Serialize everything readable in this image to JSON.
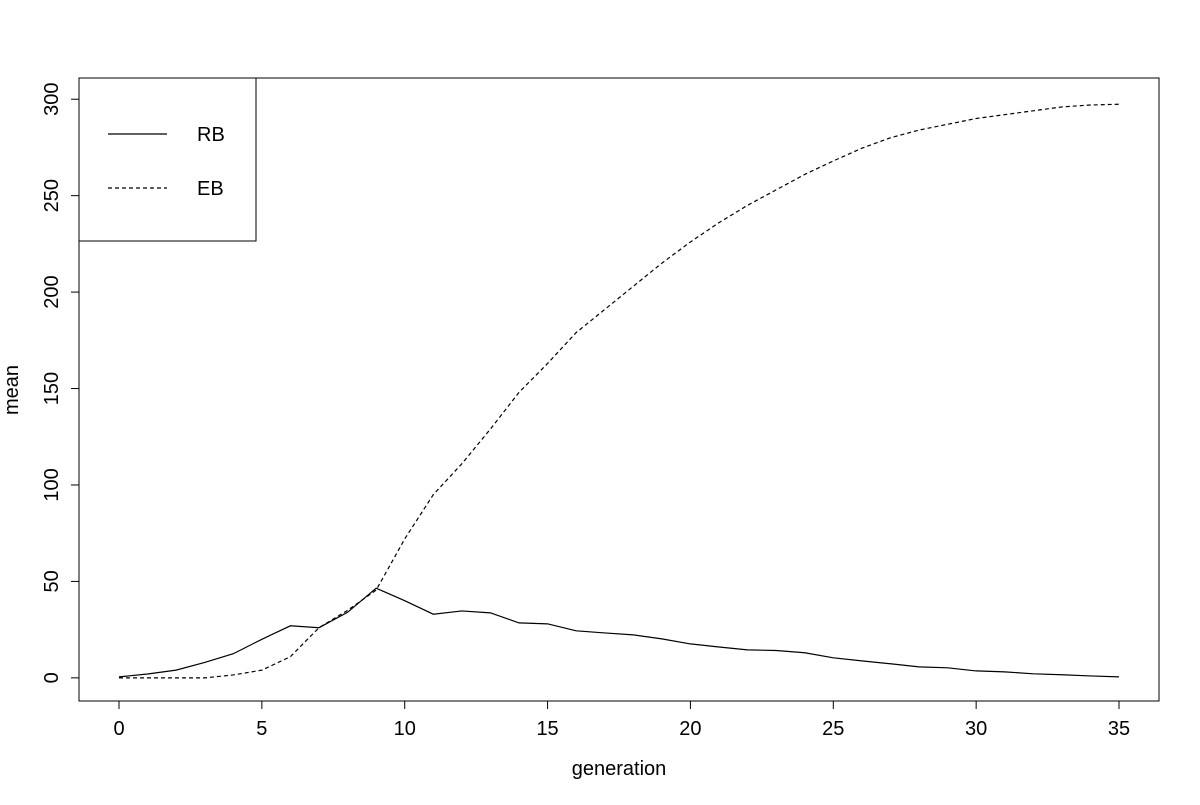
{
  "chart_data": {
    "type": "line",
    "x_label": "generation",
    "y_label": "mean",
    "x": [
      0,
      1,
      2,
      3,
      4,
      5,
      6,
      7,
      8,
      9,
      10,
      11,
      12,
      13,
      14,
      15,
      16,
      17,
      18,
      19,
      20,
      21,
      22,
      23,
      24,
      25,
      26,
      27,
      28,
      29,
      30,
      31,
      32,
      33,
      34,
      35
    ],
    "series": [
      {
        "name": "RB",
        "color": "#000000",
        "dash": "solid",
        "values": [
          0.5,
          2,
          4,
          8,
          12.5,
          20,
          27,
          26,
          34,
          46.5,
          40,
          33,
          34.7,
          33.7,
          28.5,
          28,
          24.4,
          23.3,
          22.3,
          20.2,
          17.6,
          16,
          14.5,
          14.2,
          13,
          10.4,
          8.8,
          7.3,
          5.7,
          5.2,
          3.6,
          3.1,
          2.1,
          1.6,
          1,
          0.5
        ]
      },
      {
        "name": "EB",
        "color": "#000000",
        "dash": "dashed",
        "values": [
          0,
          0,
          0,
          0,
          1.5,
          4,
          11,
          26,
          35,
          45.5,
          72,
          95,
          111,
          129,
          148,
          163,
          179,
          191,
          203,
          215,
          226,
          236,
          245,
          253,
          261,
          268,
          274.6,
          280,
          284,
          287,
          290,
          292,
          294,
          296,
          297,
          297.4
        ]
      }
    ],
    "xlim": [
      -1.4,
      36.4
    ],
    "ylim": [
      -12,
      311
    ],
    "xticks": [
      0,
      5,
      10,
      15,
      20,
      25,
      30,
      35
    ],
    "yticks": [
      0,
      50,
      100,
      150,
      200,
      250,
      300
    ],
    "legend": "top-left",
    "grid": false
  }
}
